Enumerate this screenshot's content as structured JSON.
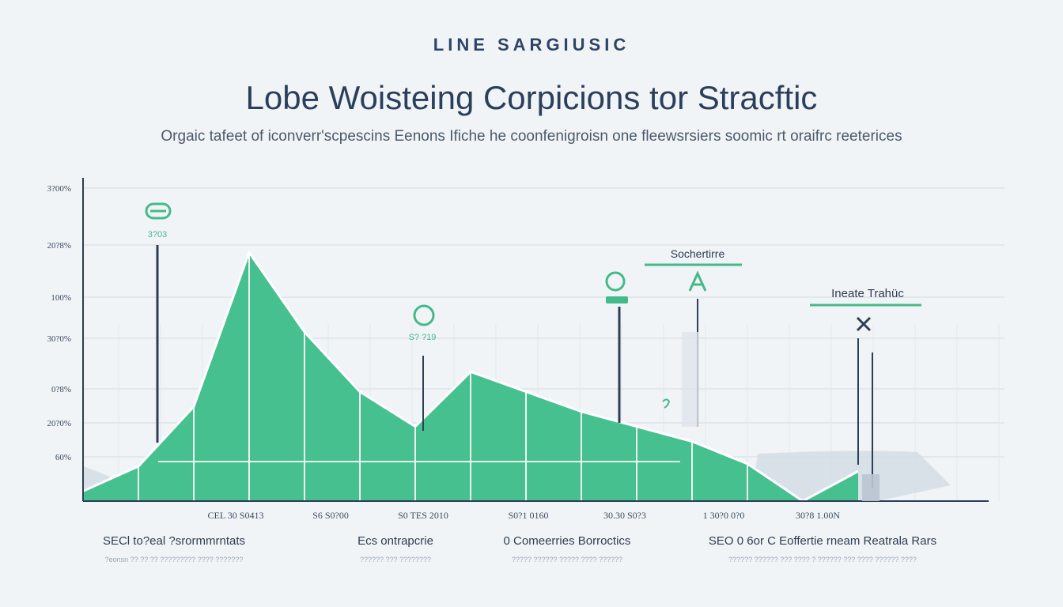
{
  "header": {
    "eyebrow": "LINE SARGIUSIC",
    "title": "Lobe Woisteing Corpicions tor Stracftic",
    "subtitle": "Orgaic tafeet of iconverr'scpescins Eenons Ifiche he coonfenigroisn one fleewsrsiers soomic rt oraifrc reeterices"
  },
  "colors": {
    "area": "#47c08f",
    "area_light": "#6fd3aa",
    "grey_area": "#d5dde5",
    "axis": "#2c3e55",
    "grid": "#d3dae1",
    "accent": "#46b98a",
    "marker_line": "#2d3e57"
  },
  "chart_data": {
    "type": "area",
    "title": "Lobe Woisteing Corpicions tor Stracftic",
    "subtitle": "Orgaic tafeet of iconverr'scpescins Eenons Ifiche he coonfenigroisn one fleewsrsiers soomic rt oraifrc reeterices",
    "y_tick_labels": [
      "3?00%",
      "20?8%",
      "100%",
      "30?0%",
      "0?8%",
      "20?0%",
      "60%"
    ],
    "x_tick_labels": [
      "CEL 30 S0413",
      "S6 S0?00",
      "S0 TES 2010",
      "S0?1 0160",
      "30.30 S0?3",
      "1 30?0 0?0",
      "30?8 1.00N"
    ],
    "x": [
      0,
      1,
      2,
      3,
      4,
      5,
      6,
      7,
      8,
      9,
      10,
      11,
      12,
      13,
      14
    ],
    "series": [
      {
        "values": [
          4,
          14,
          38,
          100,
          68,
          44,
          30,
          52,
          44,
          36,
          30,
          24,
          15,
          0,
          12
        ]
      }
    ],
    "ylim": [
      0,
      130
    ],
    "grid": true,
    "annotations": [
      {
        "label": "3?03",
        "x": 1.2
      },
      {
        "label": "S? ?19",
        "x": 4.9
      },
      {
        "label": "Sochertirre",
        "x": 8.8
      },
      {
        "label": "Ineate Trahüc",
        "x": 11.6
      }
    ]
  },
  "footer": {
    "items": [
      {
        "heading": "SECl  to?eal ?srormmrntats",
        "sub": "?eonsn ?? ?? ?? ????????? ???? ???????"
      },
      {
        "heading": "Ecs ontrapcrie",
        "sub": "?????? ??? ????????"
      },
      {
        "heading": "0  Comeerries Borroctics",
        "sub": "????? ?????? ????? ???? ??????"
      },
      {
        "heading": "SEO 0 6or C Eoffertie rneam Reatrala Rars",
        "sub": "?????? ?????? ??? ???? ? ?????? ??? ???? ?????? ????"
      }
    ]
  }
}
